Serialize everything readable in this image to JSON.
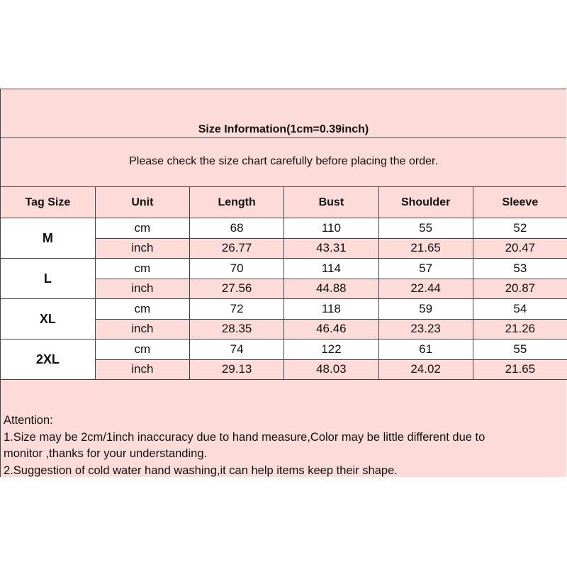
{
  "title": "Size Information(1cm=0.39inch)",
  "subtitle": "Please check the size chart carefully before placing the order.",
  "headers": [
    "Tag Size",
    "Unit",
    "Length",
    "Bust",
    "Shoulder",
    "Sleeve"
  ],
  "sizes": [
    {
      "tag": "M",
      "cm": {
        "unit": "cm",
        "values": [
          "68",
          "110",
          "55",
          "52"
        ]
      },
      "inch": {
        "unit": "inch",
        "values": [
          "26.77",
          "43.31",
          "21.65",
          "20.47"
        ]
      }
    },
    {
      "tag": "L",
      "cm": {
        "unit": "cm",
        "values": [
          "70",
          "114",
          "57",
          "53"
        ]
      },
      "inch": {
        "unit": "inch",
        "values": [
          "27.56",
          "44.88",
          "22.44",
          "20.87"
        ]
      }
    },
    {
      "tag": "XL",
      "cm": {
        "unit": "cm",
        "values": [
          "72",
          "118",
          "59",
          "54"
        ]
      },
      "inch": {
        "unit": "inch",
        "values": [
          "28.35",
          "46.46",
          "23.23",
          "21.26"
        ]
      }
    },
    {
      "tag": "2XL",
      "cm": {
        "unit": "cm",
        "values": [
          "74",
          "122",
          "61",
          "55"
        ]
      },
      "inch": {
        "unit": "inch",
        "values": [
          "29.13",
          "48.03",
          "24.02",
          "21.65"
        ]
      }
    }
  ],
  "notes": {
    "heading": "Attention:",
    "lines": [
      "1.Size may be 2cm/1inch inaccuracy due to hand measure,Color may be little different due to",
      "monitor ,thanks for your understanding.",
      "2.Suggestion of cold water hand washing,it can help items keep their shape."
    ]
  },
  "colors": {
    "pink": "#fddbd9",
    "border": "#444444"
  }
}
